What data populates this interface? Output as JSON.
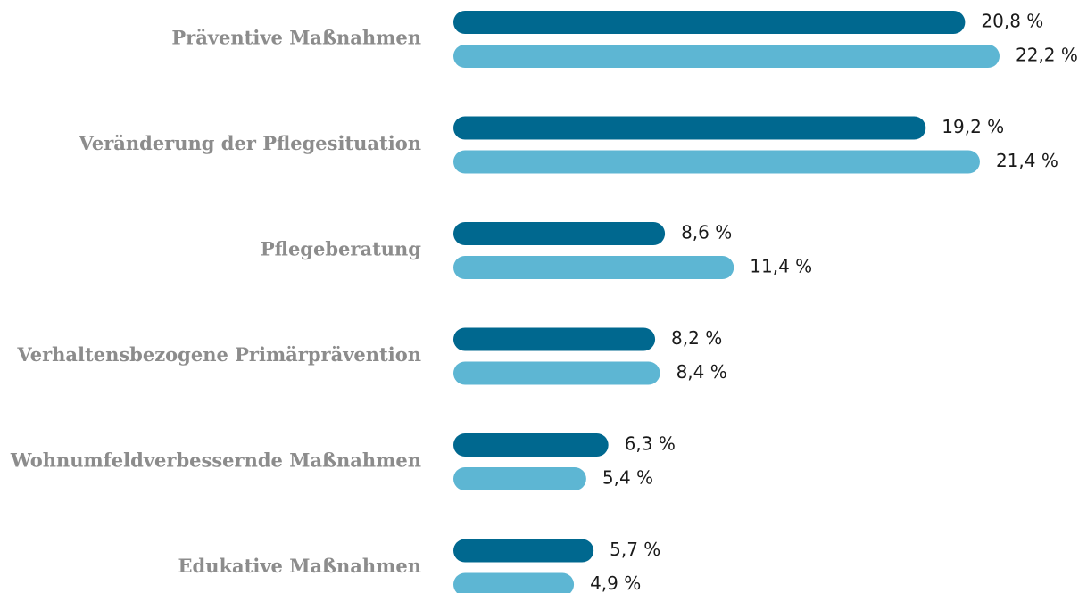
{
  "chart_data": {
    "type": "hbar",
    "categories": [
      "Präventive Maßnahmen",
      "Veränderung der Pflegesituation",
      "Pflegeberatung",
      "Verhaltensbezogene Primärprävention",
      "Wohnumfeldverbessernde Maßnahmen",
      "Edukative Maßnahmen"
    ],
    "series": [
      {
        "color": "#00688f",
        "values": [
          20.8,
          19.2,
          8.6,
          8.2,
          6.3,
          5.7
        ],
        "value_labels": [
          "20,8 %",
          "19,2 %",
          "8,6 %",
          "8,2 %",
          "6,3 %",
          "5,7 %"
        ]
      },
      {
        "color": "#5db6d3",
        "values": [
          22.2,
          21.4,
          11.4,
          8.4,
          5.4,
          4.9
        ],
        "value_labels": [
          "22,2 %",
          "21,4 %",
          "11,4 %",
          "8,4 %",
          "5,4 %",
          "4,9 %"
        ]
      }
    ]
  }
}
